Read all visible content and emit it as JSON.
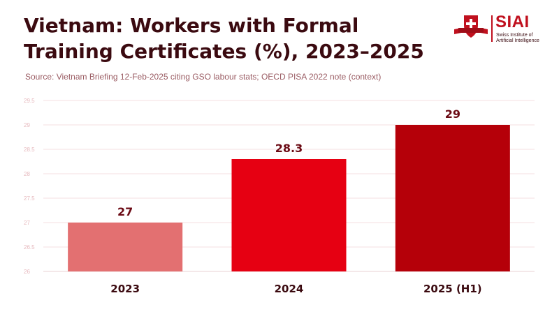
{
  "header": {
    "title": "Vietnam: Workers with Formal Training Certificates (%), 2023–2025",
    "subtitle": "Source: Vietnam Briefing 12-Feb-2025 citing GSO labour stats; OECD PISA 2022 note (context)"
  },
  "logo": {
    "name": "SIAI",
    "line1": "Swiss Institute of",
    "line2": "Artificial Intelligence",
    "icon": "swiss-cross-shield-icon",
    "color": "#c0101e"
  },
  "chart_data": {
    "type": "bar",
    "title": "Vietnam: Workers with Formal Training Certificates (%), 2023–2025",
    "categories": [
      "2023",
      "2024",
      "2025 (H1)"
    ],
    "values": [
      27,
      28.3,
      29
    ],
    "data_labels": [
      "27",
      "28.3",
      "29"
    ],
    "bar_colors": [
      "#e37071",
      "#e60012",
      "#b50009"
    ],
    "ylim": [
      26,
      29.5
    ],
    "yticks": [
      26,
      26.5,
      27,
      27.5,
      28,
      28.5,
      29,
      29.5
    ],
    "ytick_labels": [
      "26",
      "26.5",
      "27",
      "27.5",
      "28",
      "28.5",
      "29",
      "29.5"
    ],
    "xlabel": "",
    "ylabel": "",
    "grid": true,
    "legend": "none"
  }
}
